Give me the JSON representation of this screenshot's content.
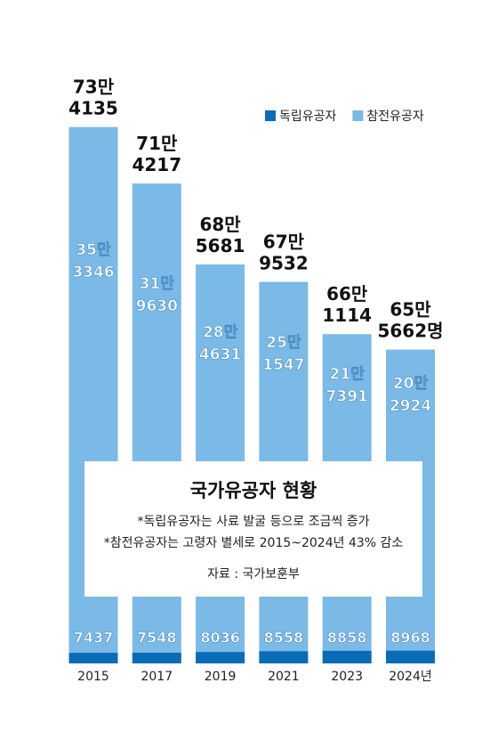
{
  "chart_data": {
    "type": "bar",
    "title": "국가유공자 현황",
    "notes": [
      "*독립유공자는 사료 발굴 등으로 조금씩 증가",
      "*참전유공자는 고령자 별세로 2015~2024년 43% 감소"
    ],
    "source": "자료 : 국가보훈부",
    "categories": [
      "2015",
      "2017",
      "2019",
      "2021",
      "2023",
      "2024년"
    ],
    "totals": {
      "values": [
        734135,
        714217,
        685681,
        679532,
        661114,
        655662
      ],
      "value_labels": [
        "73만 4135",
        "71만 4217",
        "68만 5681",
        "67만 9532",
        "66만 1114",
        "65만 5662명"
      ]
    },
    "series": [
      {
        "name": "독립유공자",
        "color": "#0a6cb6",
        "values": [
          7437,
          7548,
          8036,
          8558,
          8858,
          8968
        ]
      },
      {
        "name": "참전유공자",
        "color": "#7bb9e6",
        "values": [
          353346,
          319630,
          284631,
          251547,
          217391,
          202924
        ],
        "value_labels": [
          "35만 3346",
          "31만 9630",
          "28만 4631",
          "25만 1547",
          "21만 7391",
          "20만 2924"
        ]
      }
    ],
    "ylim": [
      545000,
      740000
    ]
  }
}
